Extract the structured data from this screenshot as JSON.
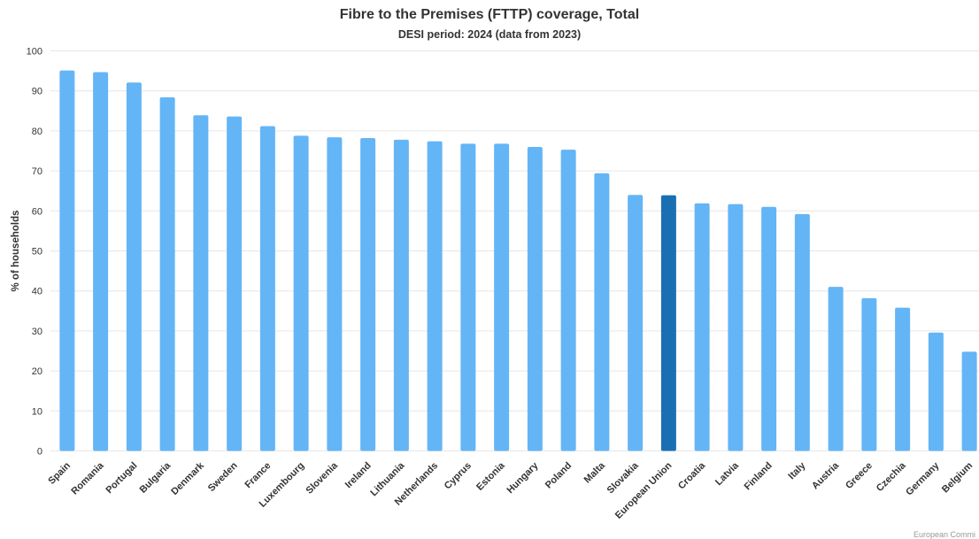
{
  "chart_data": {
    "type": "bar",
    "title": "Fibre to the Premises (FTTP) coverage, Total",
    "subtitle": "DESI period: 2024 (data from 2023)",
    "xlabel": "",
    "ylabel": "% of households",
    "ylim": [
      0,
      100
    ],
    "yticks": [
      0,
      10,
      20,
      30,
      40,
      50,
      60,
      70,
      80,
      90,
      100
    ],
    "grid": "horizontal",
    "categories": [
      "Spain",
      "Romania",
      "Portugal",
      "Bulgaria",
      "Denmark",
      "Sweden",
      "France",
      "Luxembourg",
      "Slovenia",
      "Ireland",
      "Lithuania",
      "Netherlands",
      "Cyprus",
      "Estonia",
      "Hungary",
      "Poland",
      "Malta",
      "Slovakia",
      "European Union",
      "Croatia",
      "Latvia",
      "Finland",
      "Italy",
      "Austria",
      "Greece",
      "Czechia",
      "Germany",
      "Belgium"
    ],
    "values": [
      95.1,
      94.7,
      92.1,
      88.4,
      83.9,
      83.6,
      81.2,
      78.8,
      78.4,
      78.2,
      77.8,
      77.4,
      76.8,
      76.8,
      76.0,
      75.3,
      69.4,
      64.0,
      63.9,
      61.9,
      61.7,
      61.0,
      59.2,
      41.0,
      38.2,
      35.8,
      29.6,
      24.8
    ],
    "highlight_category": "European Union",
    "colors": {
      "bar": "#64b5f6",
      "highlight": "#1a6fb3",
      "grid": "#e6e6e6",
      "text": "#333333"
    }
  },
  "credit": "European Commi"
}
